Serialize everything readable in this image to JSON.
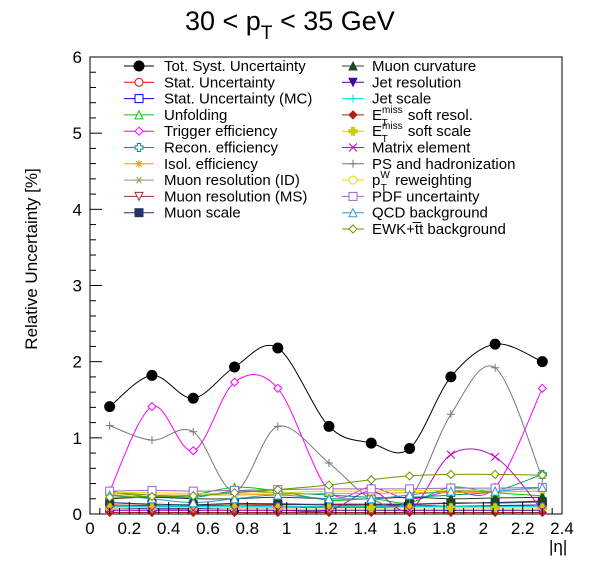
{
  "chart_data": {
    "type": "line",
    "title": "30 < p",
    "title_sub": "T",
    "title_rest": " < 35 GeV",
    "xlabel": "|η|",
    "ylabel": "Relative Uncertainty [%]",
    "xlim": [
      0,
      2.4
    ],
    "ylim": [
      0,
      6
    ],
    "x_ticks": [
      "0",
      "0.2",
      "0.4",
      "0.6",
      "0.8",
      "1",
      "1.2",
      "1.4",
      "1.6",
      "1.8",
      "2",
      "2.2",
      "2.4"
    ],
    "y_ticks": [
      "0",
      "1",
      "2",
      "3",
      "4",
      "5",
      "6"
    ],
    "grid": false,
    "legend_position": "top",
    "x": [
      0.1,
      0.315,
      0.525,
      0.735,
      0.955,
      1.215,
      1.43,
      1.625,
      1.835,
      2.06,
      2.3
    ],
    "series": [
      {
        "name": "Tot. Syst. Uncertainty",
        "color": "#000000",
        "marker": "circle-filled",
        "values": [
          1.41,
          1.82,
          1.52,
          1.93,
          2.18,
          1.15,
          0.93,
          0.86,
          1.8,
          2.23,
          2.0
        ]
      },
      {
        "name": "Stat. Uncertainty",
        "color": "#ff0000",
        "marker": "circle-open",
        "values": [
          0.12,
          0.11,
          0.11,
          0.12,
          0.12,
          0.13,
          0.13,
          0.13,
          0.14,
          0.15,
          0.17
        ]
      },
      {
        "name": "Stat. Uncertainty (MC)",
        "color": "#0000ff",
        "marker": "square-open",
        "values": [
          0.08,
          0.07,
          0.07,
          0.08,
          0.08,
          0.09,
          0.09,
          0.1,
          0.1,
          0.11,
          0.12
        ]
      },
      {
        "name": "Unfolding",
        "color": "#00cc00",
        "marker": "triangle-open",
        "values": [
          0.3,
          0.22,
          0.25,
          0.35,
          0.3,
          0.18,
          0.2,
          0.15,
          0.35,
          0.28,
          0.24
        ]
      },
      {
        "name": "Trigger efficiency",
        "color": "#ff00ff",
        "marker": "diamond-open",
        "values": [
          0.3,
          1.41,
          0.83,
          1.73,
          1.65,
          0.3,
          0.35,
          0.2,
          0.3,
          0.35,
          1.65
        ]
      },
      {
        "name": "Recon. efficiency",
        "color": "#009977",
        "marker": "cross-open",
        "values": [
          0.28,
          0.25,
          0.22,
          0.3,
          0.28,
          0.25,
          0.22,
          0.22,
          0.25,
          0.3,
          0.52
        ]
      },
      {
        "name": "Isol. efficiency",
        "color": "#ff9900",
        "marker": "star",
        "values": [
          0.25,
          0.25,
          0.25,
          0.25,
          0.26,
          0.27,
          0.27,
          0.28,
          0.28,
          0.29,
          0.3
        ]
      },
      {
        "name": "Muon resolution (ID)",
        "color": "#999966",
        "marker": "asterisk",
        "values": [
          0.15,
          0.12,
          0.1,
          0.12,
          0.14,
          0.12,
          0.1,
          0.12,
          0.15,
          0.14,
          0.16
        ]
      },
      {
        "name": "Muon resolution (MS)",
        "color": "#993333",
        "marker": "triangle-down-open",
        "values": [
          0.1,
          0.1,
          0.1,
          0.12,
          0.1,
          0.1,
          0.1,
          0.12,
          0.1,
          0.1,
          0.12
        ]
      },
      {
        "name": "Muon scale",
        "color": "#223366",
        "marker": "square-filled",
        "values": [
          0.15,
          0.13,
          0.12,
          0.14,
          0.13,
          0.12,
          0.12,
          0.13,
          0.14,
          0.15,
          0.16
        ]
      },
      {
        "name": "Muon curvature",
        "color": "#224422",
        "marker": "triangle-filled",
        "values": [
          0.2,
          0.22,
          0.2,
          0.2,
          0.22,
          0.2,
          0.2,
          0.22,
          0.2,
          0.21,
          0.22
        ]
      },
      {
        "name": "Jet resolution",
        "color": "#4400aa",
        "marker": "triangle-down-filled",
        "values": [
          0.05,
          0.05,
          0.05,
          0.05,
          0.05,
          0.05,
          0.05,
          0.05,
          0.05,
          0.05,
          0.05
        ]
      },
      {
        "name": "Jet scale",
        "color": "#00dddd",
        "marker": "plus",
        "values": [
          0.1,
          0.1,
          0.1,
          0.1,
          0.1,
          0.1,
          0.1,
          0.1,
          0.1,
          0.1,
          0.1
        ]
      },
      {
        "name": "E_T^miss soft resol.",
        "color": "#aa2211",
        "marker": "diamond-filled",
        "values": [
          0.02,
          0.02,
          0.02,
          0.02,
          0.02,
          0.02,
          0.02,
          0.02,
          0.02,
          0.02,
          0.02
        ]
      },
      {
        "name": "E_T^miss soft scale",
        "color": "#cccc00",
        "marker": "cross-filled",
        "values": [
          0.08,
          0.08,
          0.08,
          0.08,
          0.08,
          0.08,
          0.08,
          0.08,
          0.08,
          0.08,
          0.08
        ]
      },
      {
        "name": "Matrix element",
        "color": "#cc00cc",
        "marker": "x",
        "values": [
          0.05,
          0.05,
          0.05,
          0.05,
          0.05,
          0.05,
          0.3,
          0.05,
          0.78,
          0.75,
          0.05
        ]
      },
      {
        "name": "PS and hadronization",
        "color": "#777777",
        "marker": "plus",
        "values": [
          1.16,
          0.97,
          1.08,
          0.3,
          1.15,
          0.67,
          0.2,
          0.2,
          1.31,
          1.92,
          0.47
        ]
      },
      {
        "name": "p_T^W reweighting",
        "color": "#dddd00",
        "marker": "circle-open",
        "values": [
          0.28,
          0.28,
          0.27,
          0.27,
          0.28,
          0.3,
          0.3,
          0.31,
          0.31,
          0.32,
          0.33
        ]
      },
      {
        "name": "PDF uncertainty",
        "color": "#9966cc",
        "marker": "square-open",
        "values": [
          0.3,
          0.31,
          0.3,
          0.31,
          0.32,
          0.33,
          0.33,
          0.33,
          0.34,
          0.34,
          0.35
        ]
      },
      {
        "name": "QCD background",
        "color": "#3399cc",
        "marker": "triangle-open",
        "values": [
          0.25,
          0.2,
          0.15,
          0.2,
          0.25,
          0.2,
          0.2,
          0.25,
          0.3,
          0.3,
          0.35
        ]
      },
      {
        "name": "EWK+t̅t background",
        "color": "#669900",
        "marker": "diamond-open",
        "values": [
          0.22,
          0.23,
          0.24,
          0.28,
          0.32,
          0.38,
          0.45,
          0.5,
          0.52,
          0.52,
          0.51
        ]
      }
    ]
  }
}
